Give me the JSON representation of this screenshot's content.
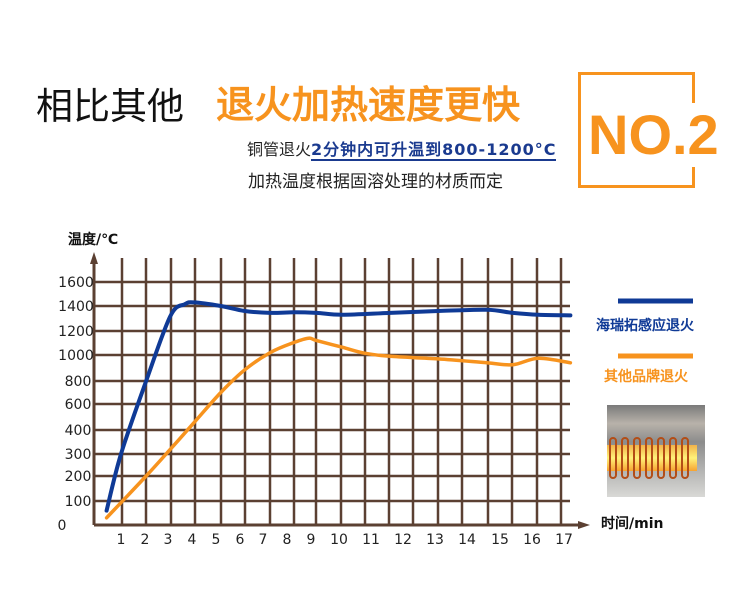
{
  "header": {
    "title_prefix": "相比其他",
    "title_highlight": "退火加热速度更快",
    "sub_prefix": "铜管退火",
    "sub_highlight": "2分钟内可升温到800-1200°C",
    "sub_line2": "加热温度根据固溶处理的材质而定",
    "badge": "NO.2"
  },
  "colors": {
    "accent": "#f7931e",
    "brand_blue": "#0f3a96",
    "grid": "#5b4032"
  },
  "photo": {
    "icon": "induction-coil-photo"
  },
  "chart_data": {
    "type": "line",
    "ylabel": "温度/℃",
    "xlabel": "时间/min",
    "x_ticks": [
      "1",
      "2",
      "3",
      "4",
      "5",
      "6",
      "7",
      "8",
      "9",
      "10",
      "11",
      "12",
      "13",
      "14",
      "15",
      "16",
      "17"
    ],
    "y_ticks": [
      "0",
      "100",
      "200",
      "300",
      "400",
      "600",
      "800",
      "1000",
      "1200",
      "1400",
      "1600"
    ],
    "grid": true,
    "legend_position": "right",
    "series": [
      {
        "name": "海瑞拓感应退火",
        "color": "#0f3a96",
        "x": [
          0.4,
          1.0,
          2.05,
          3.1,
          3.7,
          4.1,
          5.2,
          6.2,
          7.3,
          8.3,
          9.2,
          10.1,
          11.6,
          13.1,
          14.6,
          15.4,
          16.2,
          17.2
        ],
        "y": [
          60,
          300,
          800,
          1320,
          1415,
          1430,
          1400,
          1360,
          1345,
          1350,
          1345,
          1330,
          1345,
          1360,
          1370,
          1345,
          1330,
          1325
        ]
      },
      {
        "name": "其他品牌退火",
        "color": "#f7931e",
        "x": [
          0.4,
          2.05,
          3.1,
          4.1,
          5.2,
          6.2,
          7.3,
          8.3,
          8.9,
          9.2,
          10.1,
          10.8,
          11.6,
          13.1,
          14.6,
          15.4,
          16.2,
          17.2
        ],
        "y": [
          30,
          200,
          320,
          460,
          700,
          885,
          1020,
          1105,
          1140,
          1120,
          1065,
          1015,
          990,
          970,
          940,
          925,
          975,
          940
        ]
      }
    ]
  }
}
